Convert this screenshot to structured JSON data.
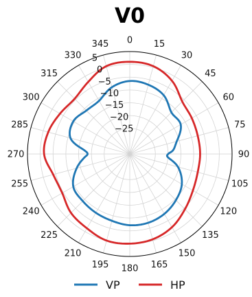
{
  "chart_data": {
    "type": "polar-line",
    "title": "V0",
    "theta_zero_location": "top",
    "theta_direction": "clockwise",
    "angle_ticks": [
      "0",
      "15",
      "30",
      "45",
      "60",
      "75",
      "90",
      "105",
      "120",
      "135",
      "150",
      "165",
      "180",
      "195",
      "210",
      "225",
      "240",
      "255",
      "270",
      "285",
      "300",
      "315",
      "330",
      "345"
    ],
    "radial_ticks": [
      5,
      0,
      -5,
      -10,
      -15,
      -20,
      -25
    ],
    "radial_tick_labels": [
      "5",
      "0",
      "−5",
      "−10",
      "−15",
      "−20",
      "−25"
    ],
    "rlim": [
      -35,
      5
    ],
    "grid": true,
    "legend_position": "bottom",
    "series": [
      {
        "name": "VP",
        "color": "#1f77b4",
        "theta": [
          0,
          15,
          30,
          45,
          60,
          75,
          85,
          90,
          95,
          105,
          120,
          135,
          150,
          165,
          180,
          195,
          210,
          225,
          240,
          255,
          265,
          270,
          275,
          285,
          300,
          315,
          330,
          345
        ],
        "r": [
          -6.5,
          -7.0,
          -8.5,
          -12.0,
          -12.0,
          -16.0,
          -18.0,
          -20.0,
          -20.0,
          -15.5,
          -11.5,
          -9.5,
          -8.0,
          -7.2,
          -7.2,
          -8.0,
          -8.5,
          -9.0,
          -9.5,
          -13.5,
          -17.0,
          -18.5,
          -17.0,
          -11.0,
          -9.5,
          -11.0,
          -11.0,
          -8.0
        ]
      },
      {
        "name": "HP",
        "color": "#d62728",
        "theta": [
          0,
          15,
          30,
          45,
          60,
          75,
          90,
          105,
          120,
          135,
          150,
          165,
          180,
          195,
          210,
          225,
          240,
          255,
          270,
          285,
          300,
          315,
          330,
          345
        ],
        "r": [
          1.0,
          0.5,
          -2.0,
          -6.0,
          -7.0,
          -7.5,
          -7.5,
          -7.5,
          -6.5,
          -4.5,
          -2.0,
          -0.5,
          0.0,
          0.0,
          -1.5,
          -2.5,
          -4.5,
          -4.0,
          -1.5,
          -2.0,
          -3.5,
          -4.5,
          -2.5,
          0.5
        ]
      }
    ]
  }
}
